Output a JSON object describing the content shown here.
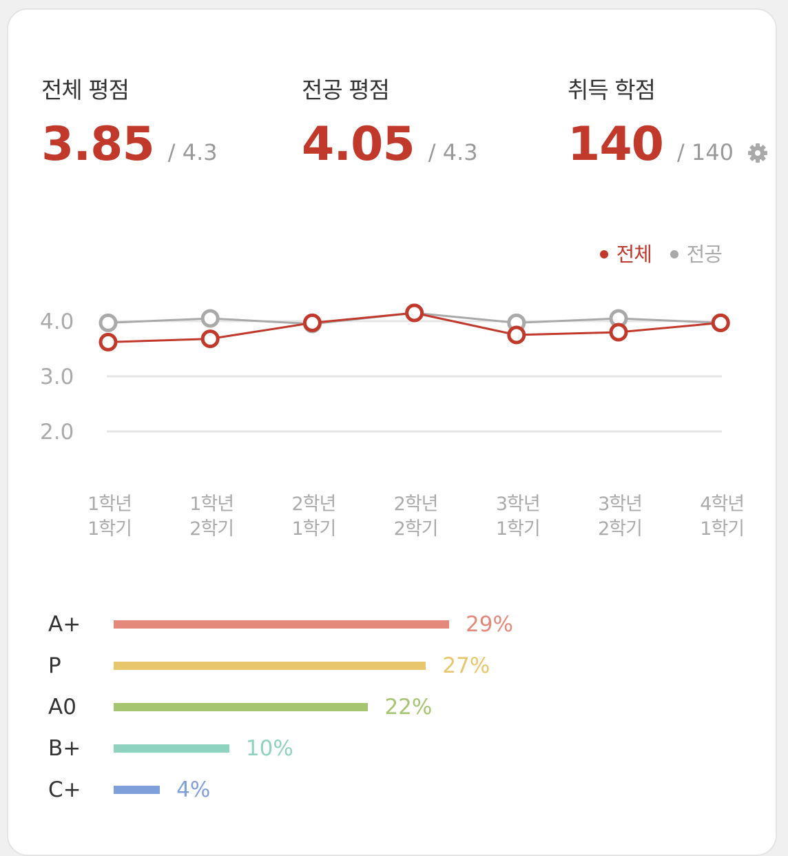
{
  "stats": {
    "overall": {
      "label": "전체 평점",
      "value": "3.85",
      "max": "/ 4.3"
    },
    "major": {
      "label": "전공 평점",
      "value": "4.05",
      "max": "/ 4.3"
    },
    "credits": {
      "label": "취득 학점",
      "value": "140",
      "max": "/ 140"
    },
    "settings_icon": "gear-icon"
  },
  "colors": {
    "accent": "#c0392b",
    "secondary": "#a9a9a9"
  },
  "chart_data": [
    {
      "type": "line",
      "categories": [
        [
          "1학년",
          "1학기"
        ],
        [
          "1학년",
          "2학기"
        ],
        [
          "2학년",
          "1학기"
        ],
        [
          "2학년",
          "2학기"
        ],
        [
          "3학년",
          "1학기"
        ],
        [
          "3학년",
          "2학기"
        ],
        [
          "4학년",
          "1학기"
        ]
      ],
      "series": [
        {
          "name": "전체",
          "color": "#c0392b",
          "values": [
            3.62,
            3.68,
            3.97,
            4.15,
            3.75,
            3.8,
            3.97
          ]
        },
        {
          "name": "전공",
          "color": "#a9a9a9",
          "values": [
            3.97,
            4.05,
            3.95,
            4.15,
            3.97,
            4.05,
            3.97
          ]
        }
      ],
      "yticks": [
        "4.0",
        "3.0",
        "2.0"
      ],
      "ylim": [
        2.0,
        4.0
      ],
      "grid": true,
      "legend_position": "top-right"
    },
    {
      "type": "bar",
      "orientation": "horizontal",
      "categories": [
        "A+",
        "P",
        "A0",
        "B+",
        "C+"
      ],
      "values": [
        29,
        27,
        22,
        10,
        4
      ],
      "labels": [
        "29%",
        "27%",
        "22%",
        "10%",
        "4%"
      ],
      "colors": [
        "#e4887a",
        "#e8c66c",
        "#a5c570",
        "#8ed2c0",
        "#7e9fd9"
      ]
    }
  ]
}
